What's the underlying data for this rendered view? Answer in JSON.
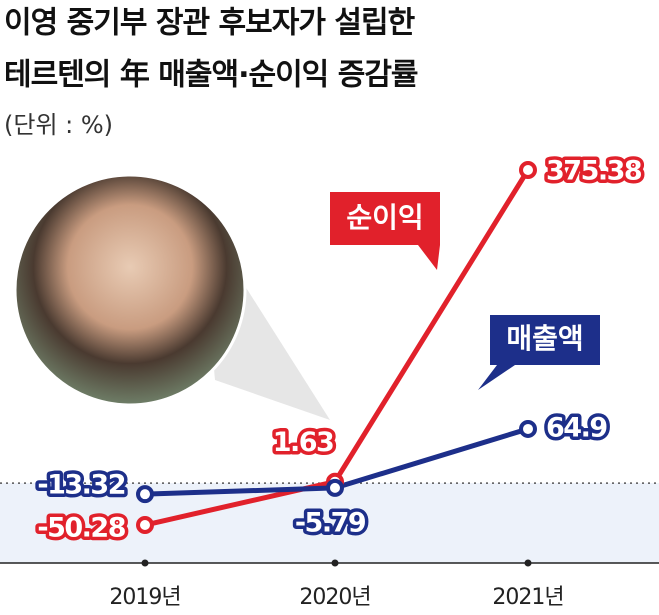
{
  "chart_data": {
    "type": "line",
    "title": [
      "이영 중기부 장관 후보자가 설립한",
      "테르텐의 年 매출액·순이익 증감률"
    ],
    "subtitle": "(단위 : %)",
    "categories": [
      "2019년",
      "2020년",
      "2021년"
    ],
    "series": [
      {
        "name": "순이익",
        "color": "#e1212b",
        "values": [
          -50.28,
          1.63,
          375.38
        ]
      },
      {
        "name": "매출액",
        "color": "#1d2f8a",
        "values": [
          -13.32,
          -5.79,
          64.9
        ]
      }
    ]
  }
}
